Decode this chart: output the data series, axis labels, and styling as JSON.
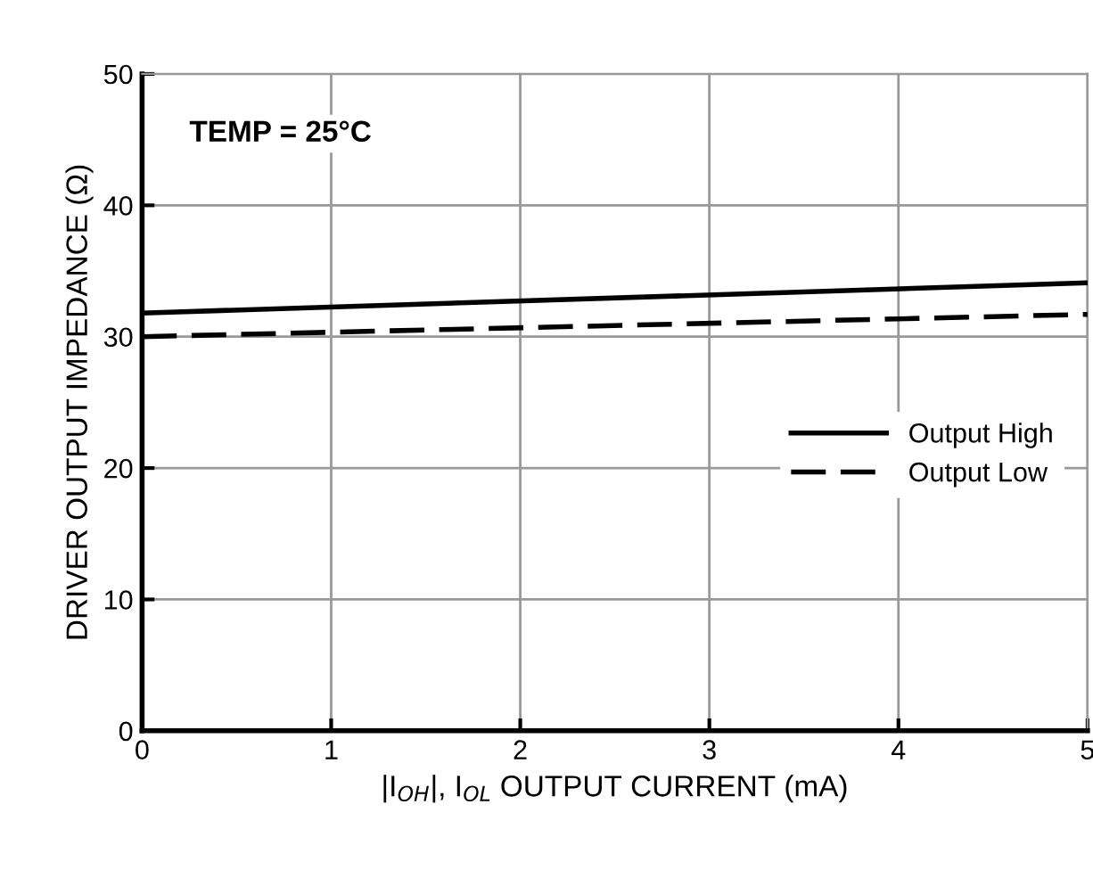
{
  "chart_data": {
    "type": "line",
    "xlabel": "|I$_{OH}$|, I$_{OL}$ OUTPUT CURRENT (mA)",
    "ylabel": "DRIVER OUTPUT IMPEDANCE (Ω)",
    "annotations": [
      "TEMP = 25°C"
    ],
    "x": [
      0,
      5
    ],
    "series": [
      {
        "name": "Output High",
        "color": "#000000",
        "line_style": "solid",
        "values": [
          31.8,
          34.1
        ]
      },
      {
        "name": "Output Low",
        "color": "#000000",
        "line_style": "dashed",
        "values": [
          30.0,
          31.7
        ]
      }
    ],
    "xlim": [
      0,
      5
    ],
    "ylim": [
      0,
      50
    ],
    "xticks": [
      0,
      1,
      2,
      3,
      4,
      5
    ],
    "yticks": [
      0,
      10,
      20,
      30,
      40,
      50
    ],
    "grid": true,
    "legend": "right",
    "marker": "none"
  }
}
